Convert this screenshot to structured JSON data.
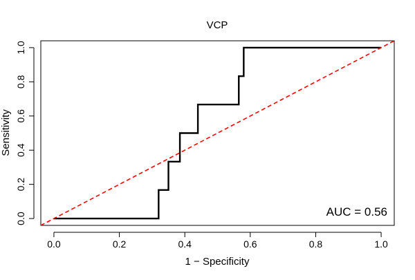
{
  "chart_data": {
    "type": "line",
    "title": "VCP",
    "xlabel": "1 − Specificity",
    "ylabel": "Sensitivity",
    "xlim": [
      -0.04,
      1.04
    ],
    "ylim": [
      -0.04,
      1.04
    ],
    "x_ticks": [
      0.0,
      0.2,
      0.4,
      0.6,
      0.8,
      1.0
    ],
    "x_tick_labels": [
      "0.0",
      "0.2",
      "0.4",
      "0.6",
      "0.8",
      "1.0"
    ],
    "y_ticks": [
      0.0,
      0.2,
      0.4,
      0.6,
      0.8,
      1.0
    ],
    "y_tick_labels": [
      "0.0",
      "0.2",
      "0.4",
      "0.6",
      "0.8",
      "1.0"
    ],
    "grid": false,
    "series": [
      {
        "name": "ROC curve",
        "color": "#000000",
        "style": "solid",
        "x": [
          0.0,
          0.32,
          0.32,
          0.35,
          0.35,
          0.385,
          0.385,
          0.44,
          0.44,
          0.565,
          0.565,
          0.58,
          0.58,
          1.0
        ],
        "y": [
          0.0,
          0.0,
          0.167,
          0.167,
          0.333,
          0.333,
          0.5,
          0.5,
          0.667,
          0.667,
          0.833,
          0.833,
          1.0,
          1.0
        ]
      },
      {
        "name": "Chance line",
        "color": "#ff0000",
        "style": "dashed",
        "x": [
          -0.04,
          1.04
        ],
        "y": [
          -0.04,
          1.04
        ]
      }
    ],
    "annotations": [
      {
        "text": "AUC = 0.56",
        "position": "bottom-right"
      }
    ]
  }
}
